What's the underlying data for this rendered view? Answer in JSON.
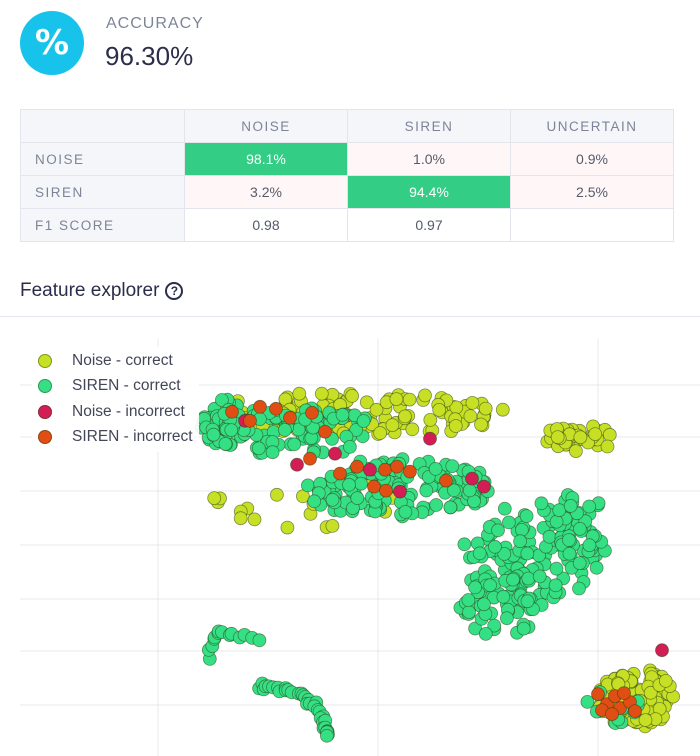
{
  "accuracy": {
    "icon": "percent-icon",
    "label": "ACCURACY",
    "value": "96.30%"
  },
  "confusion_matrix": {
    "columns": [
      "NOISE",
      "SIREN",
      "UNCERTAIN"
    ],
    "rows": [
      {
        "label": "NOISE",
        "cells": [
          "98.1%",
          "1.0%",
          "0.9%"
        ]
      },
      {
        "label": "SIREN",
        "cells": [
          "3.2%",
          "94.4%",
          "2.5%"
        ]
      },
      {
        "label": "F1 SCORE",
        "cells": [
          "0.98",
          "0.97",
          ""
        ]
      }
    ]
  },
  "feature_explorer": {
    "title": "Feature explorer",
    "help_icon": "question-circle-icon"
  },
  "chart_data": {
    "type": "scatter",
    "title": "Feature explorer",
    "xlabel": "",
    "ylabel": "",
    "xlim": [
      0,
      700
    ],
    "ylim": [
      0,
      440
    ],
    "grid": true,
    "legend": "top-left",
    "series": [
      {
        "name": "Noise - correct",
        "color": "#c7e025"
      },
      {
        "name": "SIREN - correct",
        "color": "#35e085"
      },
      {
        "name": "Noise - incorrect",
        "color": "#d21e55"
      },
      {
        "name": "SIREN - incorrect",
        "color": "#e04e13"
      }
    ],
    "clusters": [
      {
        "series": 0,
        "cx": 360,
        "cy": 343,
        "rx": 150,
        "ry": 22,
        "n": 140,
        "seed": 11
      },
      {
        "series": 0,
        "cx": 580,
        "cy": 318,
        "rx": 40,
        "ry": 14,
        "n": 45,
        "seed": 12
      },
      {
        "series": 0,
        "cx": 636,
        "cy": 58,
        "rx": 38,
        "ry": 30,
        "n": 110,
        "seed": 13
      },
      {
        "series": 0,
        "cx": 310,
        "cy": 258,
        "rx": 100,
        "ry": 30,
        "n": 20,
        "seed": 14
      },
      {
        "series": 1,
        "cx": 290,
        "cy": 325,
        "rx": 90,
        "ry": 25,
        "n": 90,
        "seed": 21
      },
      {
        "series": 1,
        "cx": 400,
        "cy": 268,
        "rx": 95,
        "ry": 30,
        "n": 150,
        "seed": 22
      },
      {
        "series": 1,
        "cx": 530,
        "cy": 200,
        "rx": 70,
        "ry": 55,
        "n": 130,
        "seed": 23
      },
      {
        "series": 1,
        "cx": 500,
        "cy": 150,
        "rx": 40,
        "ry": 30,
        "n": 40,
        "seed": 24
      },
      {
        "series": 1,
        "cx": 580,
        "cy": 225,
        "rx": 30,
        "ry": 40,
        "n": 40,
        "seed": 25
      },
      {
        "series": 1,
        "cx": 225,
        "cy": 335,
        "rx": 22,
        "ry": 25,
        "n": 40,
        "seed": 26
      },
      {
        "series": 1,
        "cx": 610,
        "cy": 50,
        "rx": 30,
        "ry": 20,
        "n": 10,
        "seed": 27
      }
    ],
    "arcs": [
      {
        "series": 1,
        "points": [
          [
            210,
            100
          ],
          [
            214,
            116
          ],
          [
            222,
            126
          ],
          [
            238,
            122
          ],
          [
            258,
            117
          ]
        ],
        "n": 14,
        "seed": 31
      },
      {
        "series": 1,
        "points": [
          [
            258,
            70
          ],
          [
            280,
            68
          ],
          [
            300,
            62
          ],
          [
            316,
            50
          ],
          [
            326,
            32
          ],
          [
            328,
            20
          ]
        ],
        "n": 34,
        "seed": 32
      }
    ],
    "points": [
      {
        "series": 2,
        "x": 430,
        "y": 318
      },
      {
        "series": 2,
        "x": 297,
        "y": 292
      },
      {
        "series": 2,
        "x": 335,
        "y": 303
      },
      {
        "series": 2,
        "x": 370,
        "y": 287
      },
      {
        "series": 2,
        "x": 400,
        "y": 265
      },
      {
        "series": 2,
        "x": 472,
        "y": 278
      },
      {
        "series": 2,
        "x": 484,
        "y": 270
      },
      {
        "series": 2,
        "x": 662,
        "y": 106
      },
      {
        "series": 2,
        "x": 245,
        "y": 336
      },
      {
        "series": 3,
        "x": 232,
        "y": 345
      },
      {
        "series": 3,
        "x": 250,
        "y": 336
      },
      {
        "series": 3,
        "x": 260,
        "y": 350
      },
      {
        "series": 3,
        "x": 276,
        "y": 348
      },
      {
        "series": 3,
        "x": 290,
        "y": 339
      },
      {
        "series": 3,
        "x": 312,
        "y": 344
      },
      {
        "series": 3,
        "x": 325,
        "y": 325
      },
      {
        "series": 3,
        "x": 310,
        "y": 298
      },
      {
        "series": 3,
        "x": 340,
        "y": 283
      },
      {
        "series": 3,
        "x": 357,
        "y": 290
      },
      {
        "series": 3,
        "x": 385,
        "y": 287
      },
      {
        "series": 3,
        "x": 397,
        "y": 290
      },
      {
        "series": 3,
        "x": 410,
        "y": 285
      },
      {
        "series": 3,
        "x": 374,
        "y": 270
      },
      {
        "series": 3,
        "x": 446,
        "y": 276
      },
      {
        "series": 3,
        "x": 386,
        "y": 266
      },
      {
        "series": 3,
        "x": 598,
        "y": 62
      },
      {
        "series": 3,
        "x": 607,
        "y": 52
      },
      {
        "series": 3,
        "x": 615,
        "y": 60
      },
      {
        "series": 3,
        "x": 620,
        "y": 48
      },
      {
        "series": 3,
        "x": 630,
        "y": 54
      },
      {
        "series": 3,
        "x": 602,
        "y": 46
      },
      {
        "series": 3,
        "x": 624,
        "y": 63
      },
      {
        "series": 3,
        "x": 635,
        "y": 45
      },
      {
        "series": 3,
        "x": 612,
        "y": 42
      }
    ]
  }
}
